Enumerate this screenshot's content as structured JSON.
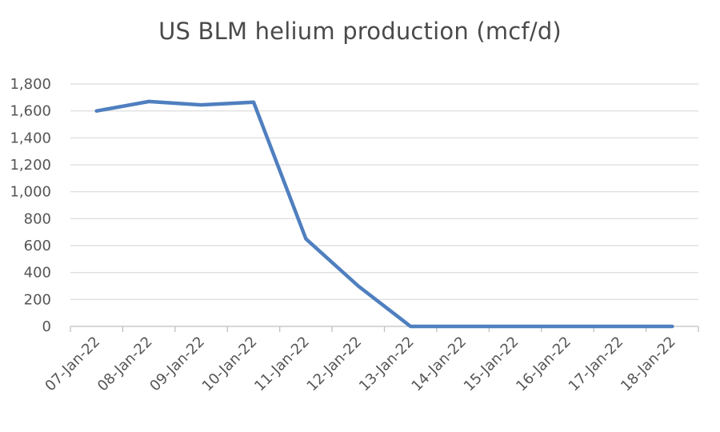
{
  "chart_data": {
    "type": "line",
    "title": "US BLM helium production (mcf/d)",
    "xlabel": "",
    "ylabel": "",
    "x": [
      "07-Jan-22",
      "08-Jan-22",
      "09-Jan-22",
      "10-Jan-22",
      "11-Jan-22",
      "12-Jan-22",
      "13-Jan-22",
      "14-Jan-22",
      "15-Jan-22",
      "16-Jan-22",
      "17-Jan-22",
      "18-Jan-22"
    ],
    "series": [
      {
        "values": [
          1600,
          1670,
          1645,
          1665,
          650,
          300,
          0,
          0,
          0,
          0,
          0,
          0
        ],
        "color": "#4f7fbf"
      }
    ],
    "ylim": [
      0,
      1800
    ],
    "yticks": [
      "0",
      "200",
      "400",
      "600",
      "800",
      "1,000",
      "1,200",
      "1,400",
      "1,600",
      "1,800"
    ],
    "grid": true,
    "legend": "none"
  }
}
